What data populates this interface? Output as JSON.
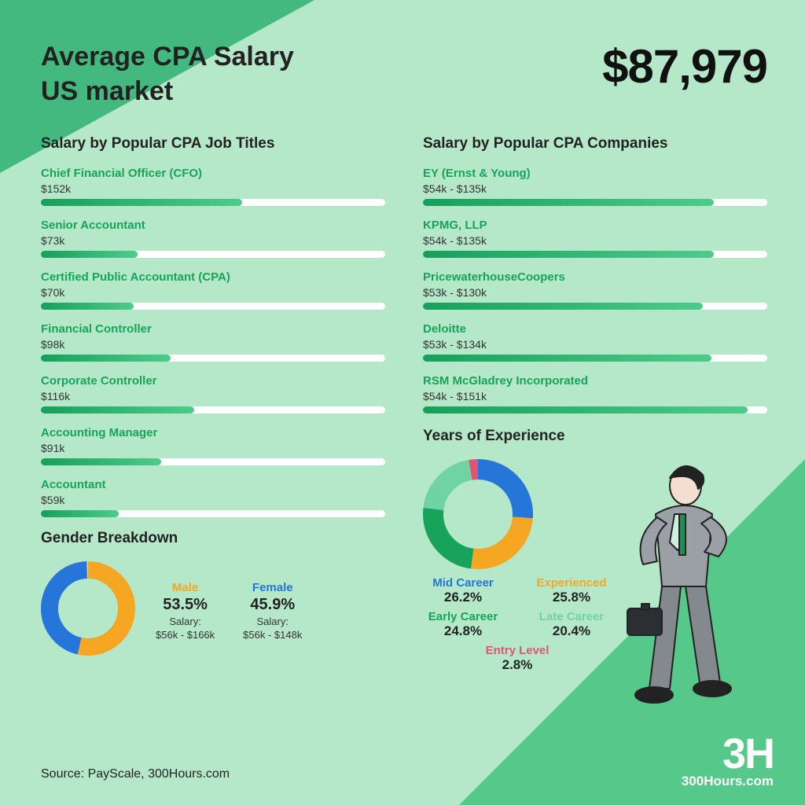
{
  "title_l1": "Average CPA Salary",
  "title_l2": "US market",
  "headline_salary": "$87,979",
  "colors": {
    "bg": "#b5e8c9",
    "tri_tl": "#43b97f",
    "tri_br": "#56c889",
    "bar_track": "#ffffff",
    "bar_from": "#17a05a",
    "bar_to": "#4ecb8a",
    "brand_text": "#18a35a",
    "male": "#f5a623",
    "female": "#2676d9"
  },
  "jobs": {
    "heading": "Salary by Popular CPA Job Titles",
    "max_scale_k": 260,
    "items": [
      {
        "name": "Chief Financial Officer (CFO)",
        "value_label": "$152k",
        "value_k": 152
      },
      {
        "name": "Senior Accountant",
        "value_label": "$73k",
        "value_k": 73
      },
      {
        "name": "Certified Public Accountant (CPA)",
        "value_label": "$70k",
        "value_k": 70
      },
      {
        "name": "Financial Controller",
        "value_label": "$98k",
        "value_k": 98
      },
      {
        "name": "Corporate Controller",
        "value_label": "$116k",
        "value_k": 116
      },
      {
        "name": "Accounting Manager",
        "value_label": "$91k",
        "value_k": 91
      },
      {
        "name": "Accountant",
        "value_label": "$59k",
        "value_k": 59
      }
    ]
  },
  "companies": {
    "heading": "Salary by Popular CPA Companies",
    "max_scale_k": 160,
    "items": [
      {
        "name": "EY (Ernst & Young)",
        "value_label": "$54k - $135k",
        "value_k": 135
      },
      {
        "name": "KPMG, LLP",
        "value_label": "$54k - $135k",
        "value_k": 135
      },
      {
        "name": "PricewaterhouseCoopers",
        "value_label": "$53k - $130k",
        "value_k": 130
      },
      {
        "name": "Deloitte",
        "value_label": "$53k - $134k",
        "value_k": 134
      },
      {
        "name": "RSM McGladrey Incorporated",
        "value_label": "$54k - $151k",
        "value_k": 151
      }
    ]
  },
  "gender": {
    "heading": "Gender Breakdown",
    "donut": {
      "size": 120,
      "thickness": 22
    },
    "items": [
      {
        "label": "Male",
        "pct": 53.5,
        "pct_label": "53.5%",
        "salary": "$56k - $166k",
        "color": "#f5a623"
      },
      {
        "label": "Female",
        "pct": 45.9,
        "pct_label": "45.9%",
        "salary": "$56k - $148k",
        "color": "#2676d9"
      }
    ],
    "salary_caption": "Salary:"
  },
  "yoe": {
    "heading": "Years of Experience",
    "donut": {
      "size": 140,
      "thickness": 26
    },
    "items": [
      {
        "label": "Mid Career",
        "pct": 26.2,
        "pct_label": "26.2%",
        "color": "#2676d9"
      },
      {
        "label": "Experienced",
        "pct": 25.8,
        "pct_label": "25.8%",
        "color": "#f5a623"
      },
      {
        "label": "Early Career",
        "pct": 24.8,
        "pct_label": "24.8%",
        "color": "#18a35a"
      },
      {
        "label": "Late Career",
        "pct": 20.4,
        "pct_label": "20.4%",
        "color": "#6fd3a3"
      },
      {
        "label": "Entry Level",
        "pct": 2.8,
        "pct_label": "2.8%",
        "color": "#e05577"
      }
    ]
  },
  "source": "Source: PayScale, 300Hours.com",
  "logo": {
    "big": "3H",
    "small": "300Hours.com"
  }
}
